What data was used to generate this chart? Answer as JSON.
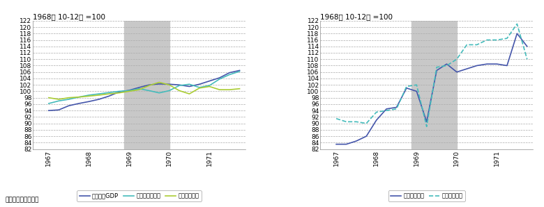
{
  "title_left": "1968年 10-12月 =100",
  "title_right": "1968年 10-12月 =100",
  "source": "資料：米国商務省。",
  "shade_start": 1968.875,
  "shade_end": 1970.0,
  "ylim": [
    82,
    122
  ],
  "yticks": [
    82,
    84,
    86,
    88,
    90,
    92,
    94,
    96,
    98,
    100,
    102,
    104,
    106,
    108,
    110,
    112,
    114,
    116,
    118,
    120,
    122
  ],
  "xlim": [
    1966.6,
    1971.9
  ],
  "xtick_positions": [
    1967.0,
    1968.0,
    1969.0,
    1970.0,
    1971.0
  ],
  "xtick_labels": [
    "1967",
    "1968",
    "1969",
    "1970",
    "1971"
  ],
  "quarters": [
    1967.0,
    1967.25,
    1967.5,
    1967.75,
    1968.0,
    1968.25,
    1968.5,
    1968.75,
    1969.0,
    1969.25,
    1969.5,
    1969.75,
    1970.0,
    1970.25,
    1970.5,
    1970.75,
    1971.0,
    1971.25,
    1971.5,
    1971.75
  ],
  "gdp": [
    94.0,
    94.2,
    95.5,
    96.2,
    96.8,
    97.5,
    98.5,
    99.8,
    100.3,
    101.2,
    102.0,
    102.3,
    102.2,
    102.0,
    101.5,
    102.2,
    103.2,
    104.2,
    105.8,
    106.5
  ],
  "labor_productivity": [
    96.2,
    97.0,
    97.5,
    98.2,
    98.8,
    99.2,
    99.6,
    100.0,
    100.2,
    100.8,
    100.2,
    99.5,
    100.2,
    101.8,
    102.2,
    101.2,
    101.8,
    103.8,
    105.2,
    106.2
  ],
  "labor_input": [
    98.0,
    97.5,
    98.0,
    98.2,
    98.5,
    98.8,
    99.2,
    99.5,
    100.0,
    100.5,
    101.8,
    102.8,
    102.0,
    100.2,
    99.2,
    101.0,
    101.5,
    100.5,
    100.5,
    100.8
  ],
  "imports": [
    83.5,
    83.5,
    84.5,
    86.0,
    91.0,
    94.5,
    95.0,
    101.0,
    100.0,
    90.5,
    106.5,
    108.5,
    106.0,
    107.0,
    108.0,
    108.5,
    108.5,
    108.0,
    118.0,
    114.0
  ],
  "exports": [
    91.5,
    90.5,
    90.5,
    90.0,
    93.5,
    94.0,
    94.5,
    101.5,
    102.0,
    89.0,
    107.5,
    108.0,
    110.0,
    114.5,
    114.5,
    116.0,
    116.0,
    116.5,
    121.0,
    110.0
  ],
  "color_gdp": "#4455aa",
  "color_productivity": "#44bbbb",
  "color_labor_input": "#aacc33",
  "color_imports": "#4455aa",
  "color_exports": "#44bbbb",
  "shade_color": "#c8c8c8",
  "legend_left": [
    "米国実質GDP",
    "米国労働生産性",
    "米国労働投入"
  ],
  "legend_right": [
    "米国実質輸入",
    "米国実質輸出"
  ]
}
